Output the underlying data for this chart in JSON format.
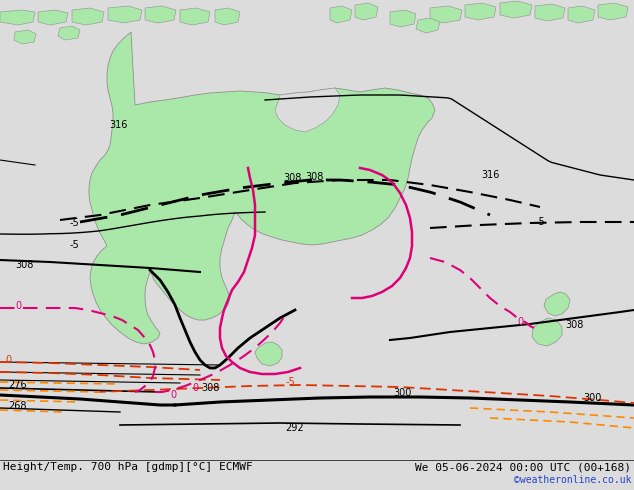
{
  "title_left": "Height/Temp. 700 hPa [gdmp][°C] ECMWF",
  "title_right": "We 05-06-2024 00:00 UTC (00+168)",
  "credit": "©weatheronline.co.uk",
  "bg_color": "#dcdcdc",
  "land_color": "#aae8aa",
  "land_border_color": "#909090",
  "col_black": "#000000",
  "col_magenta": "#dd0077",
  "col_red": "#dd3300",
  "col_orange": "#ff8800",
  "col_blue": "#2244cc",
  "fs_title": 8,
  "fs_label": 7,
  "fs_credit": 7,
  "dpi": 100,
  "figsize": [
    6.34,
    4.9
  ]
}
